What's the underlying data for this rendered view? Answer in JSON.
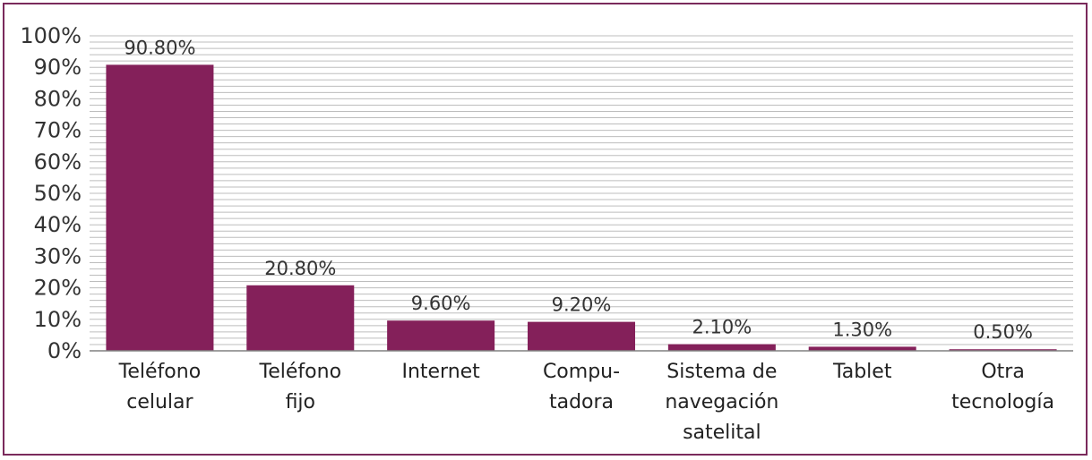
{
  "chart_data": {
    "type": "bar",
    "title": "",
    "xlabel": "",
    "ylabel": "",
    "ylim": [
      0,
      100
    ],
    "yticks": [
      "0%",
      "10%",
      "20%",
      "30%",
      "40%",
      "50%",
      "60%",
      "70%",
      "80%",
      "90%",
      "100%"
    ],
    "categories": [
      [
        "Teléfono",
        "celular"
      ],
      [
        "Teléfono",
        "fijo"
      ],
      [
        "Internet"
      ],
      [
        "Compu-",
        "tadora"
      ],
      [
        "Sistema de",
        "navegación",
        "satelital"
      ],
      [
        "Tablet"
      ],
      [
        "Otra",
        "tecnología"
      ]
    ],
    "values": [
      90.8,
      20.8,
      9.6,
      9.2,
      2.1,
      1.3,
      0.5
    ],
    "labels": [
      "90.80%",
      "20.80%",
      "9.60%",
      "9.20%",
      "2.10%",
      "1.30%",
      "0.50%"
    ],
    "colors": {
      "bar": "#84205a",
      "grid": "#bdbdbd",
      "axis": "#808080",
      "text": "#333333",
      "frame": "#7a2a5c"
    }
  }
}
